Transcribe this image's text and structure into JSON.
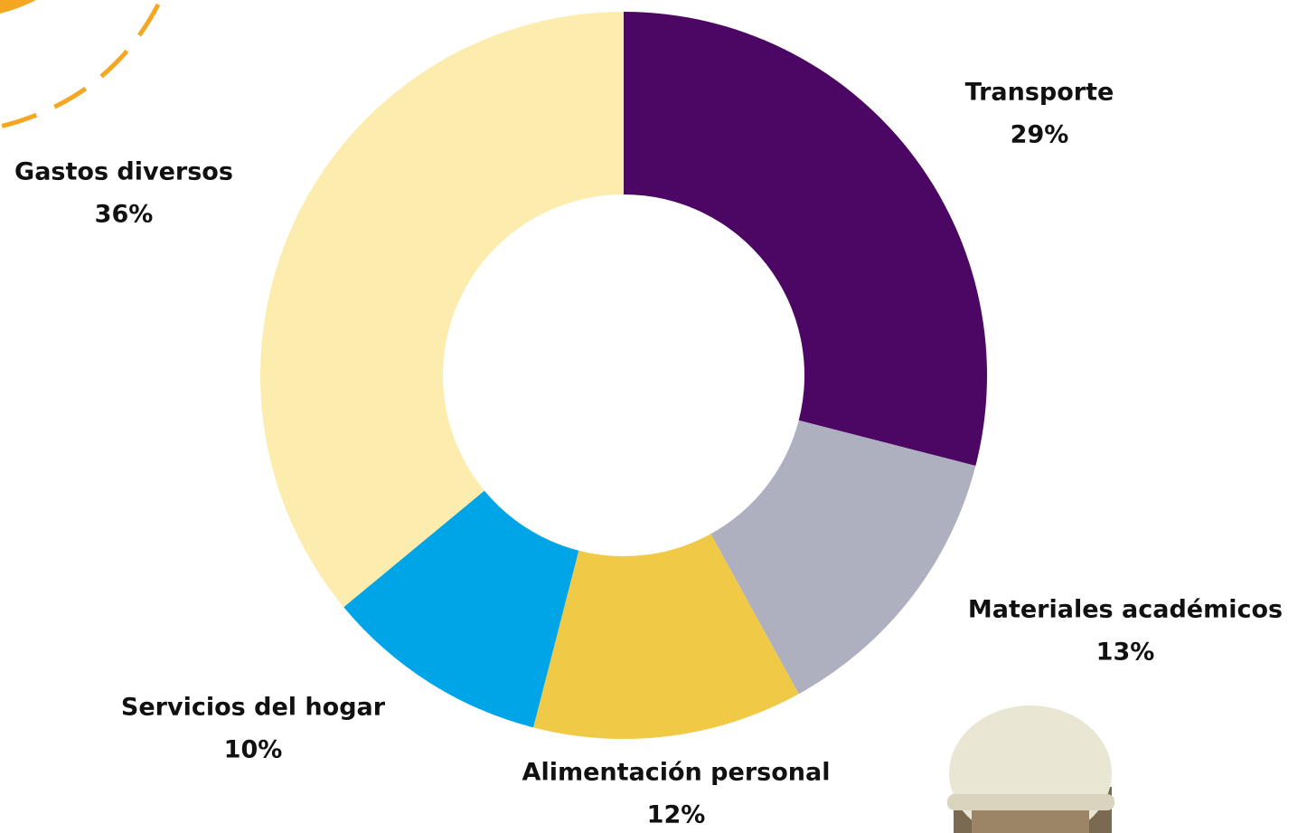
{
  "chart_data": {
    "type": "donut",
    "categories": [
      "Transporte",
      "Materiales académicos",
      "Alimentación personal",
      "Servicios del hogar",
      "Gastos diversos"
    ],
    "values": [
      29,
      13,
      12,
      10,
      36
    ],
    "value_labels": [
      "29%",
      "13%",
      "12%",
      "10%",
      "36%"
    ],
    "colors": [
      "#4b0763",
      "#aeb0c0",
      "#f0ca47",
      "#00a5e8",
      "#fcecad"
    ]
  }
}
